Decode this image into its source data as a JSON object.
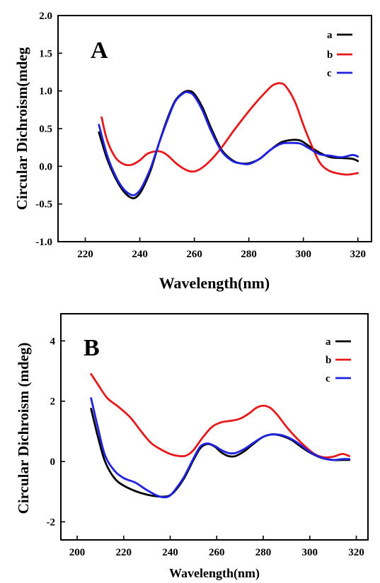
{
  "chart_data": [
    {
      "type": "line",
      "panel_label": "A",
      "title": "",
      "xlabel": "Wavelength(nm)",
      "ylabel": "Circular Dichroism(mdeg",
      "xlim": [
        210,
        325
      ],
      "ylim": [
        -1.0,
        2.0
      ],
      "xticks": [
        220,
        240,
        260,
        280,
        300,
        320
      ],
      "yticks": [
        -1.0,
        -0.5,
        0.0,
        0.5,
        1.0,
        1.5,
        2.0
      ],
      "ytick_labels": [
        "-1.0",
        "-0.5",
        "0.0",
        "0.5",
        "1.0",
        "1.5",
        "2.0"
      ],
      "legend_position": "top-right",
      "series": [
        {
          "name": "a",
          "color": "#000000",
          "x": [
            225,
            228,
            231,
            234,
            237,
            239,
            241,
            244,
            247,
            250,
            253,
            256,
            258,
            260,
            263,
            266,
            270,
            274,
            277,
            280,
            284,
            288,
            292,
            296,
            299,
            302,
            306,
            310,
            314,
            318,
            320
          ],
          "y": [
            0.45,
            0.1,
            -0.15,
            -0.33,
            -0.42,
            -0.4,
            -0.3,
            -0.05,
            0.3,
            0.62,
            0.87,
            0.98,
            1.0,
            0.96,
            0.78,
            0.52,
            0.22,
            0.08,
            0.04,
            0.04,
            0.1,
            0.22,
            0.32,
            0.35,
            0.34,
            0.27,
            0.18,
            0.12,
            0.11,
            0.1,
            0.07
          ]
        },
        {
          "name": "b",
          "color": "#e8191b",
          "x": [
            226,
            228,
            231,
            234,
            237,
            240,
            243,
            247,
            250,
            253,
            256,
            259,
            262,
            266,
            270,
            274,
            278,
            282,
            286,
            289,
            292,
            294,
            297,
            300,
            303,
            306,
            309,
            312,
            316,
            320
          ],
          "y": [
            0.65,
            0.35,
            0.12,
            0.03,
            0.02,
            0.08,
            0.17,
            0.2,
            0.15,
            0.05,
            -0.03,
            -0.07,
            -0.04,
            0.08,
            0.25,
            0.45,
            0.64,
            0.82,
            0.98,
            1.08,
            1.1,
            1.04,
            0.85,
            0.55,
            0.28,
            0.05,
            -0.05,
            -0.09,
            -0.11,
            -0.09
          ]
        },
        {
          "name": "c",
          "color": "#1f22e0",
          "x": [
            225,
            228,
            231,
            234,
            237,
            239,
            241,
            244,
            247,
            250,
            253,
            256,
            258,
            260,
            263,
            266,
            270,
            274,
            277,
            280,
            284,
            288,
            292,
            296,
            299,
            302,
            306,
            310,
            314,
            318,
            320
          ],
          "y": [
            0.55,
            0.15,
            -0.12,
            -0.3,
            -0.38,
            -0.36,
            -0.26,
            -0.02,
            0.3,
            0.6,
            0.86,
            0.97,
            0.98,
            0.93,
            0.74,
            0.48,
            0.2,
            0.07,
            0.04,
            0.03,
            0.1,
            0.22,
            0.3,
            0.31,
            0.3,
            0.24,
            0.16,
            0.14,
            0.12,
            0.15,
            0.13
          ]
        }
      ]
    },
    {
      "type": "line",
      "panel_label": "B",
      "title": "",
      "xlabel": "Wavelength(nm)",
      "ylabel": "Circular Dichroism (mdeg)",
      "xlim": [
        193,
        325
      ],
      "ylim": [
        -2.6,
        4.9
      ],
      "xticks": [
        200,
        220,
        240,
        260,
        280,
        300,
        320
      ],
      "yticks": [
        -2,
        0,
        2,
        4
      ],
      "ytick_labels": [
        "-2",
        "0",
        "2",
        "4"
      ],
      "legend_position": "top-right",
      "series": [
        {
          "name": "a",
          "color": "#000000",
          "x": [
            206,
            209,
            212,
            216,
            220,
            225,
            230,
            235,
            239,
            242,
            246,
            250,
            253,
            256,
            259,
            262,
            265,
            268,
            272,
            276,
            280,
            284,
            288,
            292,
            296,
            300,
            305,
            310,
            314,
            317
          ],
          "y": [
            1.75,
            0.8,
            0.0,
            -0.55,
            -0.8,
            -0.98,
            -1.1,
            -1.16,
            -1.15,
            -0.98,
            -0.55,
            0.05,
            0.45,
            0.58,
            0.5,
            0.3,
            0.18,
            0.18,
            0.35,
            0.6,
            0.82,
            0.9,
            0.85,
            0.72,
            0.5,
            0.3,
            0.12,
            0.05,
            0.05,
            0.05
          ]
        },
        {
          "name": "b",
          "color": "#e8191b",
          "x": [
            206,
            209,
            213,
            218,
            223,
            228,
            232,
            236,
            240,
            244,
            247,
            250,
            254,
            258,
            262,
            266,
            270,
            274,
            277,
            280,
            283,
            286,
            290,
            294,
            298,
            302,
            306,
            310,
            314,
            317
          ],
          "y": [
            2.9,
            2.55,
            2.1,
            1.8,
            1.45,
            0.95,
            0.6,
            0.4,
            0.25,
            0.18,
            0.2,
            0.38,
            0.8,
            1.15,
            1.3,
            1.35,
            1.42,
            1.6,
            1.78,
            1.85,
            1.78,
            1.55,
            1.15,
            0.8,
            0.5,
            0.25,
            0.14,
            0.16,
            0.25,
            0.18
          ]
        },
        {
          "name": "c",
          "color": "#1f22e0",
          "x": [
            206,
            209,
            212,
            216,
            220,
            225,
            230,
            235,
            239,
            242,
            246,
            250,
            253,
            256,
            259,
            262,
            265,
            268,
            272,
            276,
            280,
            284,
            288,
            292,
            296,
            300,
            305,
            310,
            314,
            317
          ],
          "y": [
            2.1,
            1.1,
            0.2,
            -0.3,
            -0.55,
            -0.7,
            -0.95,
            -1.15,
            -1.17,
            -0.95,
            -0.5,
            0.1,
            0.5,
            0.6,
            0.52,
            0.38,
            0.28,
            0.28,
            0.42,
            0.63,
            0.82,
            0.9,
            0.87,
            0.75,
            0.55,
            0.32,
            0.13,
            0.05,
            0.08,
            0.08
          ]
        }
      ]
    }
  ]
}
